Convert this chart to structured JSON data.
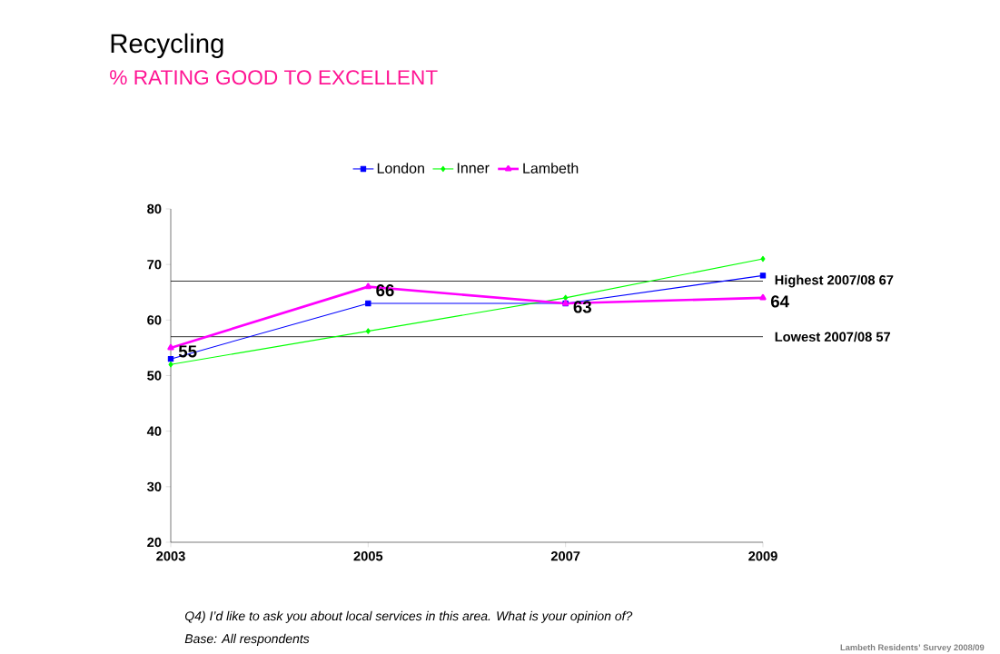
{
  "chart_data": {
    "type": "line",
    "title": "Recycling",
    "subtitle": "% RATING GOOD TO EXCELLENT",
    "x": [
      2003,
      2005,
      2007,
      2009
    ],
    "xlim": [
      2003,
      2009
    ],
    "xticks": [
      2003,
      2005,
      2007,
      2009
    ],
    "ylim": [
      20,
      80
    ],
    "yticks": [
      20,
      30,
      40,
      50,
      60,
      70,
      80
    ],
    "series": [
      {
        "name": "London",
        "color": "#0000ff",
        "marker": "square",
        "values": [
          53,
          63,
          63,
          68
        ]
      },
      {
        "name": "Inner",
        "color": "#00ff00",
        "marker": "diamond",
        "values": [
          52,
          58,
          64,
          71
        ]
      },
      {
        "name": "Lambeth",
        "color": "#ff00ff",
        "marker": "triangle",
        "values": [
          55,
          66,
          63,
          64
        ],
        "value_labels": [
          "55",
          "66",
          "63",
          "64"
        ]
      }
    ],
    "ref_lines": [
      {
        "axis": "y",
        "value": 67,
        "label": "Highest 2007/08 67",
        "color": "#000000"
      },
      {
        "axis": "y",
        "value": 57,
        "label": "Lowest 2007/08 57",
        "color": "#000000"
      }
    ],
    "legend": "top",
    "grid": false,
    "annotations": [
      "Q4) I’d like to ask you about local services in this area. What is your opinion of?",
      "Base: All respondents",
      "Lambeth Residents’ Survey 2008/09"
    ]
  }
}
